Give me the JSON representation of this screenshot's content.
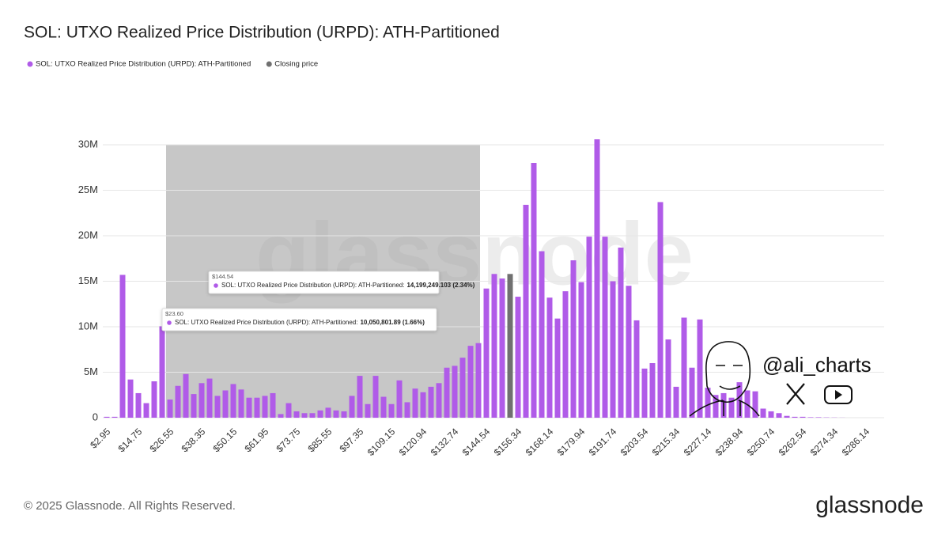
{
  "chart_data": {
    "type": "bar",
    "title": "SOL: UTXO Realized Price Distribution (URPD): ATH-Partitioned",
    "categories": [
      "$2.95",
      null,
      null,
      null,
      "$14.75",
      null,
      null,
      null,
      "$26.55",
      null,
      null,
      null,
      "$38.35",
      null,
      null,
      null,
      "$50.15",
      null,
      null,
      null,
      "$61.95",
      null,
      null,
      null,
      "$73.75",
      null,
      null,
      null,
      "$85.55",
      null,
      null,
      null,
      "$97.35",
      null,
      null,
      null,
      "$109.15",
      null,
      null,
      null,
      "$120.94",
      null,
      null,
      null,
      "$132.74",
      null,
      null,
      null,
      "$144.54",
      null,
      null,
      null,
      "$156.34",
      null,
      null,
      null,
      "$168.14",
      null,
      null,
      null,
      "$179.94",
      null,
      null,
      null,
      "$191.74",
      null,
      null,
      null,
      "$203.54",
      null,
      null,
      null,
      "$215.34",
      null,
      null,
      null,
      "$227.14",
      null,
      null,
      null,
      "$238.94",
      null,
      null,
      null,
      "$250.74",
      null,
      null,
      null,
      "$262.54",
      null,
      null,
      null,
      "$274.34",
      null,
      null,
      null,
      "$286.14"
    ],
    "series": [
      {
        "name": "SOL: UTXO Realized Price Distribution (URPD): ATH-Partitioned",
        "color": "#b05be8",
        "values": [
          100000,
          100000,
          15700000,
          4200000,
          2700000,
          1600000,
          4000000,
          10050801.89,
          2000000,
          3500000,
          4800000,
          2600000,
          3800000,
          4300000,
          2400000,
          3000000,
          3700000,
          3100000,
          2200000,
          2200000,
          2400000,
          2700000,
          400000,
          1600000,
          700000,
          500000,
          500000,
          800000,
          1100000,
          800000,
          700000,
          2400000,
          4600000,
          1500000,
          4600000,
          2300000,
          1500000,
          4100000,
          1700000,
          3200000,
          2800000,
          3400000,
          3800000,
          5500000,
          5700000,
          6600000,
          7900000,
          8200000,
          14199249.103,
          15800000,
          15300000,
          null,
          13300000,
          23400000,
          28000000,
          18300000,
          13200000,
          10900000,
          13900000,
          17300000,
          14900000,
          19900000,
          30600000,
          19900000,
          15000000,
          18700000,
          14500000,
          10700000,
          5400000,
          6000000,
          23700000,
          8600000,
          3400000,
          11000000,
          5500000,
          10800000,
          3300000,
          2500000,
          2700000,
          2200000,
          3900000,
          3000000,
          2900000,
          1000000,
          700000,
          500000,
          200000,
          100000,
          100000,
          50000,
          50000,
          30000,
          20000,
          10000,
          0,
          0,
          0
        ]
      },
      {
        "name": "Closing price",
        "color": "#707070",
        "values": [
          null,
          null,
          null,
          null,
          null,
          null,
          null,
          null,
          null,
          null,
          null,
          null,
          null,
          null,
          null,
          null,
          null,
          null,
          null,
          null,
          null,
          null,
          null,
          null,
          null,
          null,
          null,
          null,
          null,
          null,
          null,
          null,
          null,
          null,
          null,
          null,
          null,
          null,
          null,
          null,
          null,
          null,
          null,
          null,
          null,
          null,
          null,
          null,
          null,
          null,
          null,
          15800000,
          null,
          null,
          null,
          null,
          null,
          null,
          null,
          null,
          null,
          null,
          null,
          null,
          null,
          null,
          null,
          null,
          null,
          null,
          null,
          null,
          null,
          null,
          null,
          null,
          null,
          null,
          null,
          null,
          null,
          null,
          null,
          null,
          null,
          null,
          null,
          null,
          null,
          null,
          null,
          null,
          null,
          null,
          null,
          null,
          null
        ]
      }
    ],
    "ylim": [
      0,
      35000000
    ],
    "yticks": [
      0,
      {
        "value": 5000000,
        "label": "5M"
      },
      {
        "value": 10000000,
        "label": "10M"
      },
      {
        "value": 15000000,
        "label": "15M"
      },
      {
        "value": 20000000,
        "label": "20M"
      },
      {
        "value": 25000000,
        "label": "25M"
      },
      {
        "value": 30000000,
        "label": "30M"
      }
    ],
    "grid": true,
    "tooltips": [
      {
        "x": "$144.54",
        "label": "SOL: UTXO Realized Price Distribution (URPD): ATH-Partitioned:",
        "value_label": "14,199,249.103 (2.34%)"
      },
      {
        "x": "$23.60",
        "label": "SOL: UTXO Realized Price Distribution (URPD): ATH-Partitioned:",
        "value_label": "10,050,801.89 (1.66%)"
      }
    ],
    "watermark": "glassnode",
    "footer": "© 2025 Glassnode. All Rights Reserved.",
    "logo": "glassnode",
    "handle": "@ali_charts"
  }
}
